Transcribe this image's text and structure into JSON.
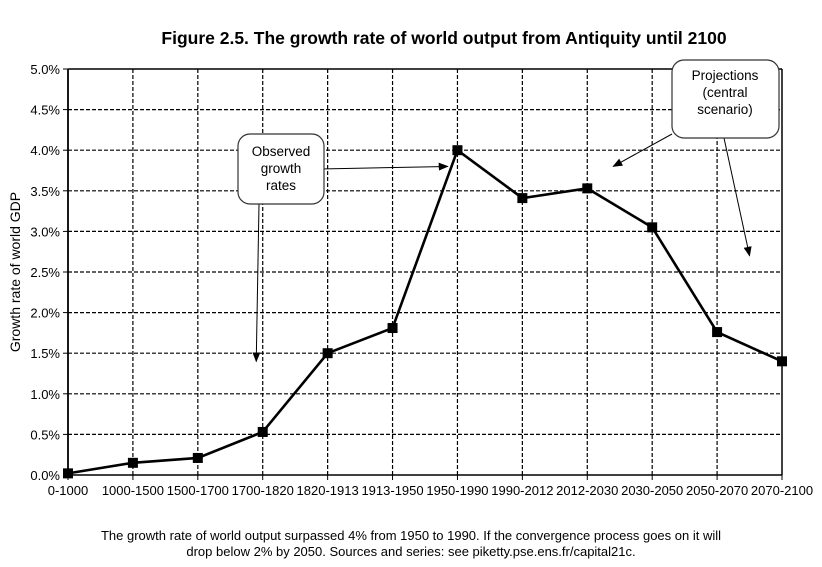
{
  "chart_data": {
    "type": "line",
    "title": "Figure 2.5. The growth rate of world output from Antiquity until 2100",
    "xlabel": "",
    "ylabel": "Growth rate of world GDP",
    "categories": [
      "0-1000",
      "1000-1500",
      "1500-1700",
      "1700-1820",
      "1820-1913",
      "1913-1950",
      "1950-1990",
      "1990-2012",
      "2012-2030",
      "2030-2050",
      "2050-2070",
      "2070-2100"
    ],
    "series": [
      {
        "name": "World GDP growth rate",
        "values": [
          0.02,
          0.15,
          0.21,
          0.53,
          1.5,
          1.81,
          4.0,
          3.41,
          3.53,
          3.05,
          1.76,
          1.4
        ],
        "marker": "square",
        "color": "#000000"
      }
    ],
    "ylim": [
      0,
      5
    ],
    "yticks": [
      0,
      0.5,
      1,
      1.5,
      2,
      2.5,
      3,
      3.5,
      4,
      4.5,
      5
    ],
    "ytick_labels": [
      "0.0%",
      "0.5%",
      "1.0%",
      "1.5%",
      "2.0%",
      "2.5%",
      "3.0%",
      "3.5%",
      "4.0%",
      "4.5%",
      "5.0%"
    ],
    "grid": true,
    "grid_style": "dashed",
    "annotations": [
      {
        "id": "observed",
        "lines": [
          "Observed",
          "growth",
          "rates"
        ],
        "arrow_targets": [
          {
            "x_category": 2.9,
            "y": 1.4
          },
          {
            "x_category": 5.85,
            "y": 3.8
          }
        ]
      },
      {
        "id": "projections",
        "lines": [
          "Projections",
          "(central",
          "scenario)"
        ],
        "arrow_targets": [
          {
            "x_category": 8.4,
            "y": 3.8
          },
          {
            "x_category": 10.5,
            "y": 2.7
          }
        ]
      }
    ]
  },
  "footnote": {
    "line1": "The growth rate of world output surpassed 4% from 1950 to 1990. If the convergence process goes on it will",
    "line2": "drop below 2% by 2050. Sources and series: see piketty.pse.ens.fr/capital21c."
  }
}
